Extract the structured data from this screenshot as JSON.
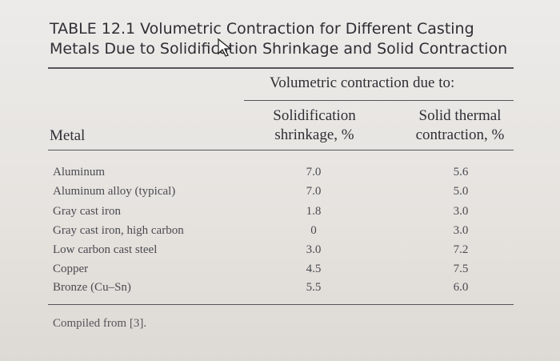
{
  "title": [
    "TABLE 12.1  Volumetric Contraction for Different Casting",
    "Metals Due to Solidification Shrinkage and Solid Contraction"
  ],
  "table": {
    "group_header": "Volumetric contraction due to:",
    "columns": [
      "Metal",
      [
        "Solidification",
        "shrinkage, %"
      ],
      [
        "Solid thermal",
        "contraction, %"
      ]
    ],
    "rows": [
      [
        "Aluminum",
        "7.0",
        "5.6"
      ],
      [
        "Aluminum alloy (typical)",
        "7.0",
        "5.0"
      ],
      [
        "Gray cast iron",
        "1.8",
        "3.0"
      ],
      [
        "Gray cast iron, high carbon",
        "0",
        "3.0"
      ],
      [
        "Low carbon cast steel",
        "3.0",
        "7.2"
      ],
      [
        "Copper",
        "4.5",
        "7.5"
      ],
      [
        "Bronze (Cu–Sn)",
        "5.5",
        "6.0"
      ]
    ]
  },
  "footnote": "Compiled from [3]."
}
